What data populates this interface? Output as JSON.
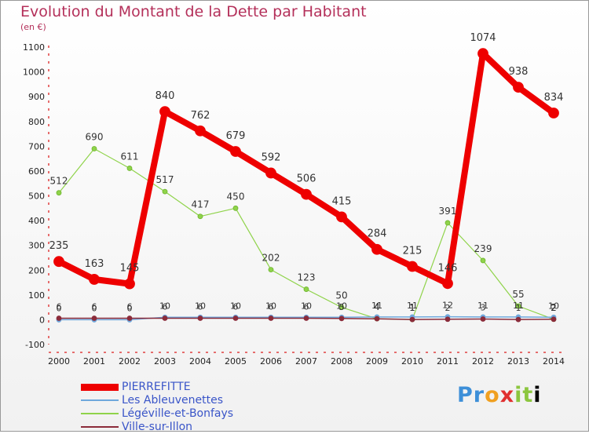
{
  "title": "Evolution du Montant de la Dette par Habitant",
  "subtitle": "(en €)",
  "logo": [
    "P",
    "r",
    "o",
    "x",
    "i",
    "t",
    "i"
  ],
  "chart_data": {
    "type": "line",
    "title": "Evolution du Montant de la Dette par Habitant",
    "ylabel": "(en €)",
    "ylim": [
      -100,
      1100
    ],
    "yticks": [
      -100,
      0,
      100,
      200,
      300,
      400,
      500,
      600,
      700,
      800,
      900,
      1000,
      1100
    ],
    "x": [
      "2000",
      "2001",
      "2002",
      "2003",
      "2004",
      "2005",
      "2006",
      "2007",
      "2008",
      "2009",
      "2010",
      "2011",
      "2012",
      "2013",
      "2014"
    ],
    "grid": false,
    "legend_position": "bottom-left",
    "series": [
      {
        "name": "PIERREFITTE",
        "color": "#ee0000",
        "values": [
          235,
          163,
          145,
          840,
          762,
          679,
          592,
          506,
          415,
          284,
          215,
          146,
          1074,
          938,
          834
        ],
        "labels": [
          "235",
          "163",
          "145",
          "840",
          "762",
          "679",
          "592",
          "506",
          "415",
          "284",
          "215",
          "146",
          "1074",
          "938",
          "834"
        ]
      },
      {
        "name": "Les Ableuvenettes",
        "color": "#6fa8dc",
        "values": [
          0,
          0,
          0,
          10,
          10,
          10,
          10,
          10,
          10,
          11,
          11,
          12,
          11,
          11,
          10
        ],
        "labels": [
          "0",
          "0",
          "0",
          "10",
          "10",
          "10",
          "10",
          "10",
          "10",
          "11",
          "11",
          "12",
          "11",
          "11",
          "10"
        ]
      },
      {
        "name": "Légéville-et-Bonfays",
        "color": "#8fd34a",
        "values": [
          512,
          690,
          611,
          517,
          417,
          450,
          202,
          123,
          50,
          4,
          1,
          391,
          239,
          55,
          2
        ],
        "labels": [
          "512",
          "690",
          "611",
          "517",
          "417",
          "450",
          "202",
          "123",
          "50",
          "4",
          "1",
          "391",
          "239",
          "55",
          "2"
        ]
      },
      {
        "name": "Ville-sur-Illon",
        "color": "#8b2b3a",
        "values": [
          6,
          6,
          6,
          6,
          6,
          6,
          6,
          6,
          5,
          4,
          1,
          2,
          3,
          1,
          2
        ],
        "labels": [
          "6",
          "6",
          "6",
          "6",
          "6",
          "6",
          "6",
          "6",
          "5",
          "4",
          "1",
          "2",
          "3",
          "1",
          "2"
        ]
      }
    ]
  }
}
